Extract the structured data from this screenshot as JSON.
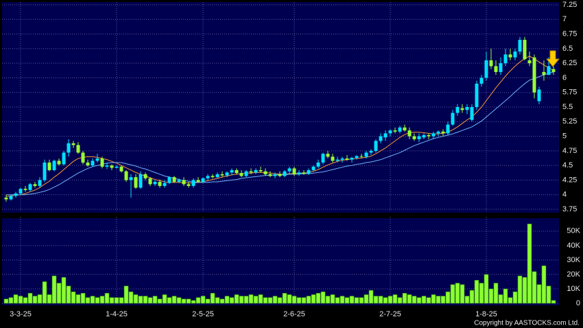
{
  "chart_data": [
    {
      "type": "candlestick",
      "categories": [
        null,
        null,
        null,
        "3-3-25",
        null,
        null,
        null,
        null,
        null,
        null,
        null,
        null,
        null,
        null,
        null,
        null,
        null,
        null,
        null,
        null,
        null,
        null,
        null,
        "1-4-25",
        null,
        null,
        null,
        null,
        null,
        null,
        null,
        null,
        null,
        null,
        null,
        null,
        null,
        null,
        null,
        null,
        null,
        "2-5-25",
        null,
        null,
        null,
        null,
        null,
        null,
        null,
        null,
        null,
        null,
        null,
        null,
        null,
        null,
        null,
        null,
        null,
        null,
        "2-6-25",
        null,
        null,
        null,
        null,
        null,
        null,
        null,
        null,
        null,
        null,
        null,
        null,
        null,
        null,
        null,
        null,
        null,
        null,
        null,
        "2-7-25",
        null,
        null,
        null,
        null,
        null,
        null,
        null,
        null,
        null,
        null,
        null,
        null,
        null,
        null,
        null,
        null,
        null,
        null,
        null,
        "1-8-25",
        null,
        null,
        null,
        null,
        null,
        null,
        null,
        null,
        null,
        null,
        null,
        null,
        null,
        null
      ],
      "open": [
        3.95,
        3.92,
        3.98,
        4.02,
        4.1,
        4.08,
        4.18,
        4.15,
        4.25,
        4.55,
        4.42,
        4.58,
        4.52,
        4.72,
        4.88,
        4.85,
        4.72,
        4.55,
        4.5,
        4.58,
        4.62,
        4.48,
        4.5,
        4.46,
        4.48,
        4.4,
        4.25,
        4.3,
        4.12,
        4.35,
        4.28,
        4.18,
        4.22,
        4.15,
        4.2,
        4.3,
        4.22,
        4.25,
        4.18,
        4.15,
        4.25,
        4.22,
        4.28,
        4.32,
        4.3,
        4.35,
        4.33,
        4.38,
        4.42,
        4.37,
        4.32,
        4.4,
        4.38,
        4.42,
        4.4,
        4.35,
        4.32,
        4.35,
        4.32,
        4.4,
        4.45,
        4.35,
        4.38,
        4.36,
        4.42,
        4.48,
        4.55,
        4.7,
        4.65,
        4.58,
        4.6,
        4.62,
        4.6,
        4.63,
        4.66,
        4.65,
        4.72,
        4.75,
        4.92,
        4.98,
        5.05,
        5.1,
        5.08,
        5.15,
        5.1,
        5.0,
        4.95,
        4.98,
        5.02,
        5.0,
        5.05,
        5.08,
        5.05,
        5.2,
        5.4,
        5.48,
        5.45,
        5.28,
        5.5,
        5.9,
        6.0,
        6.3,
        6.2,
        6.1,
        6.25,
        6.4,
        6.35,
        6.45,
        6.65,
        6.3,
        6.35,
        5.6,
        6.1,
        6.05,
        6.15
      ],
      "high": [
        4.0,
        4.0,
        4.05,
        4.12,
        4.15,
        4.2,
        4.22,
        4.3,
        4.6,
        4.6,
        4.6,
        4.62,
        4.75,
        4.95,
        4.92,
        4.9,
        4.75,
        4.6,
        4.62,
        4.7,
        4.65,
        4.55,
        4.52,
        4.5,
        4.5,
        4.42,
        4.35,
        4.35,
        4.4,
        4.38,
        4.3,
        4.25,
        4.26,
        4.25,
        4.32,
        4.32,
        4.28,
        4.3,
        4.22,
        4.28,
        4.3,
        4.3,
        4.35,
        4.35,
        4.38,
        4.4,
        4.4,
        4.45,
        4.45,
        4.42,
        4.42,
        4.45,
        4.45,
        4.48,
        4.45,
        4.4,
        4.38,
        4.4,
        4.42,
        4.48,
        4.48,
        4.42,
        4.42,
        4.45,
        4.5,
        4.6,
        4.72,
        4.75,
        4.7,
        4.65,
        4.65,
        4.68,
        4.65,
        4.68,
        4.7,
        4.75,
        4.78,
        4.95,
        5.05,
        5.1,
        5.12,
        5.15,
        5.18,
        5.2,
        5.15,
        5.05,
        5.05,
        5.05,
        5.05,
        5.08,
        5.1,
        5.12,
        5.25,
        5.45,
        5.55,
        5.55,
        5.55,
        5.55,
        5.95,
        6.05,
        6.45,
        6.5,
        6.3,
        6.35,
        6.5,
        6.5,
        6.5,
        6.7,
        6.7,
        6.45,
        6.4,
        5.85,
        6.3,
        6.35,
        6.2
      ],
      "low": [
        3.88,
        3.9,
        3.95,
        4.0,
        4.05,
        4.05,
        4.12,
        4.12,
        4.22,
        4.4,
        4.4,
        4.5,
        4.5,
        4.65,
        4.8,
        4.7,
        4.52,
        4.48,
        4.48,
        4.55,
        4.45,
        4.44,
        4.42,
        4.45,
        4.38,
        4.22,
        3.95,
        4.1,
        4.1,
        4.25,
        4.15,
        4.15,
        4.12,
        4.12,
        4.18,
        4.2,
        4.2,
        4.15,
        4.12,
        4.12,
        4.2,
        4.2,
        4.25,
        4.28,
        4.28,
        4.3,
        4.3,
        4.33,
        4.35,
        4.3,
        4.3,
        4.35,
        4.35,
        4.38,
        4.32,
        4.3,
        4.28,
        4.3,
        4.3,
        4.35,
        4.32,
        4.32,
        4.34,
        4.34,
        4.4,
        4.45,
        4.52,
        4.62,
        4.55,
        4.55,
        4.55,
        4.58,
        4.55,
        4.6,
        4.62,
        4.62,
        4.68,
        4.72,
        4.88,
        4.92,
        5.0,
        5.05,
        5.05,
        5.08,
        4.95,
        4.92,
        4.9,
        4.95,
        4.95,
        4.95,
        5.0,
        5.0,
        5.02,
        5.18,
        5.35,
        5.4,
        5.38,
        5.25,
        5.45,
        5.85,
        5.95,
        6.15,
        6.05,
        6.05,
        6.2,
        6.3,
        6.3,
        6.4,
        6.3,
        6.2,
        5.65,
        5.55,
        5.95,
        6.05,
        6.05
      ],
      "close": [
        3.92,
        3.98,
        4.02,
        4.1,
        4.08,
        4.18,
        4.15,
        4.25,
        4.55,
        4.42,
        4.58,
        4.52,
        4.72,
        4.88,
        4.85,
        4.72,
        4.55,
        4.5,
        4.58,
        4.62,
        4.48,
        4.5,
        4.46,
        4.48,
        4.4,
        4.25,
        4.3,
        4.12,
        4.35,
        4.28,
        4.18,
        4.22,
        4.15,
        4.2,
        4.3,
        4.22,
        4.25,
        4.18,
        4.15,
        4.25,
        4.22,
        4.28,
        4.32,
        4.3,
        4.35,
        4.33,
        4.38,
        4.42,
        4.37,
        4.32,
        4.4,
        4.38,
        4.42,
        4.4,
        4.35,
        4.32,
        4.35,
        4.32,
        4.4,
        4.45,
        4.35,
        4.38,
        4.36,
        4.42,
        4.48,
        4.55,
        4.7,
        4.65,
        4.58,
        4.6,
        4.62,
        4.6,
        4.63,
        4.66,
        4.65,
        4.72,
        4.75,
        4.92,
        5.0,
        5.05,
        5.1,
        5.08,
        5.15,
        5.1,
        5.0,
        4.95,
        5.0,
        5.02,
        5.0,
        5.05,
        5.08,
        5.05,
        5.2,
        5.4,
        5.5,
        5.45,
        5.5,
        5.5,
        5.9,
        6.0,
        6.3,
        6.2,
        6.1,
        6.25,
        6.4,
        6.35,
        6.45,
        6.65,
        6.32,
        6.25,
        5.75,
        5.8,
        6.05,
        6.2,
        6.1
      ],
      "up_color": "#00e0ff",
      "down_color": "#99ff33",
      "series": [
        {
          "color": "#ff9933",
          "values": [
            3.97,
            3.98,
            3.99,
            4.0,
            4.02,
            4.05,
            4.08,
            4.12,
            4.18,
            4.23,
            4.3,
            4.36,
            4.43,
            4.5,
            4.57,
            4.62,
            4.64,
            4.65,
            4.65,
            4.64,
            4.62,
            4.6,
            4.57,
            4.54,
            4.5,
            4.46,
            4.42,
            4.38,
            4.35,
            4.32,
            4.29,
            4.26,
            4.24,
            4.22,
            4.21,
            4.21,
            4.21,
            4.21,
            4.2,
            4.2,
            4.21,
            4.22,
            4.24,
            4.26,
            4.28,
            4.3,
            4.32,
            4.34,
            4.35,
            4.36,
            4.37,
            4.37,
            4.38,
            4.38,
            4.38,
            4.37,
            4.36,
            4.35,
            4.35,
            4.36,
            4.36,
            4.37,
            4.37,
            4.38,
            4.4,
            4.43,
            4.47,
            4.51,
            4.54,
            4.57,
            4.59,
            4.6,
            4.61,
            4.62,
            4.63,
            4.64,
            4.66,
            4.7,
            4.75,
            4.8,
            4.86,
            4.92,
            4.98,
            5.03,
            5.06,
            5.07,
            5.07,
            5.06,
            5.05,
            5.04,
            5.04,
            5.05,
            5.07,
            5.11,
            5.16,
            5.22,
            5.28,
            5.33,
            5.41,
            5.5,
            5.61,
            5.72,
            5.83,
            5.93,
            6.03,
            6.12,
            6.2,
            6.27,
            6.33,
            6.37,
            6.33,
            6.27,
            6.22,
            6.17,
            6.13
          ]
        },
        {
          "color": "#6fb4ff",
          "values": [
            4.0,
            4.0,
            4.0,
            4.0,
            4.0,
            4.01,
            4.02,
            4.04,
            4.06,
            4.09,
            4.13,
            4.17,
            4.22,
            4.27,
            4.32,
            4.37,
            4.41,
            4.45,
            4.48,
            4.5,
            4.52,
            4.54,
            4.55,
            4.55,
            4.55,
            4.53,
            4.51,
            4.49,
            4.46,
            4.44,
            4.41,
            4.38,
            4.35,
            4.32,
            4.3,
            4.28,
            4.26,
            4.24,
            4.23,
            4.22,
            4.21,
            4.21,
            4.21,
            4.22,
            4.22,
            4.23,
            4.24,
            4.25,
            4.26,
            4.28,
            4.29,
            4.3,
            4.31,
            4.32,
            4.33,
            4.33,
            4.34,
            4.34,
            4.34,
            4.35,
            4.35,
            4.35,
            4.36,
            4.36,
            4.37,
            4.38,
            4.39,
            4.41,
            4.43,
            4.45,
            4.47,
            4.49,
            4.5,
            4.52,
            4.53,
            4.55,
            4.56,
            4.58,
            4.6,
            4.63,
            4.66,
            4.69,
            4.72,
            4.76,
            4.8,
            4.84,
            4.87,
            4.9,
            4.93,
            4.96,
            4.98,
            5.0,
            5.02,
            5.04,
            5.07,
            5.1,
            5.13,
            5.16,
            5.21,
            5.26,
            5.33,
            5.4,
            5.47,
            5.54,
            5.61,
            5.68,
            5.76,
            5.83,
            5.9,
            5.96,
            5.99,
            6.02,
            6.05,
            6.08,
            6.1
          ]
        }
      ],
      "ylim": [
        3.75,
        7.25
      ],
      "yticks": [
        3.75,
        4,
        4.25,
        4.5,
        4.75,
        5,
        5.25,
        5.5,
        5.75,
        6,
        6.25,
        6.5,
        6.75,
        7,
        7.25
      ],
      "grid": true
    },
    {
      "type": "bar",
      "color": "#8cff33",
      "values": [
        3000,
        4000,
        6000,
        5000,
        4000,
        7000,
        5000,
        6000,
        15000,
        6000,
        19000,
        14000,
        18000,
        12000,
        8000,
        6000,
        7000,
        4000,
        5000,
        4000,
        5000,
        7000,
        4000,
        4000,
        4000,
        12000,
        8000,
        6000,
        5000,
        5000,
        4000,
        5000,
        3000,
        6000,
        4000,
        5000,
        4000,
        3000,
        3000,
        2000,
        4000,
        5000,
        3000,
        7000,
        4000,
        3000,
        5000,
        4000,
        6000,
        5000,
        5000,
        6000,
        5000,
        6000,
        4000,
        4000,
        5000,
        4000,
        7000,
        6000,
        5000,
        4000,
        4000,
        5000,
        6000,
        7000,
        8000,
        5000,
        6000,
        4000,
        5000,
        4000,
        5000,
        4000,
        4000,
        6000,
        9000,
        5000,
        5000,
        4000,
        5000,
        6000,
        4000,
        7000,
        6000,
        5000,
        4000,
        5000,
        4000,
        6000,
        5000,
        5000,
        8000,
        13000,
        14000,
        13000,
        5000,
        9000,
        16000,
        14000,
        20000,
        10000,
        14000,
        6000,
        10000,
        4000,
        8000,
        19000,
        18000,
        55000,
        22000,
        13000,
        26000,
        12000,
        2000
      ],
      "ylim": [
        0,
        58000
      ],
      "yticks": [
        0,
        {
          "value": 10000,
          "label": "10K"
        },
        {
          "value": 20000,
          "label": "20K"
        },
        {
          "value": 30000,
          "label": "30K"
        },
        {
          "value": 40000,
          "label": "40K"
        },
        {
          "value": 50000,
          "label": "50K"
        }
      ],
      "grid": true
    }
  ],
  "copyright": "Copyright by AASTOCKS.com Ltd."
}
